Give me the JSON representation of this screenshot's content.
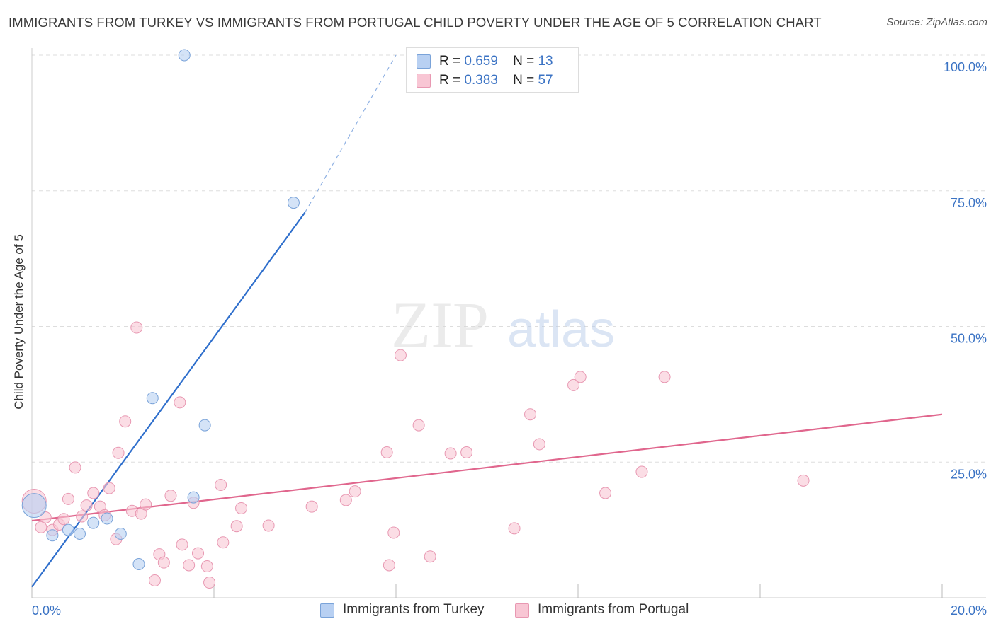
{
  "title": "IMMIGRANTS FROM TURKEY VS IMMIGRANTS FROM PORTUGAL CHILD POVERTY UNDER THE AGE OF 5 CORRELATION CHART",
  "source": "Source: ZipAtlas.com",
  "watermark": {
    "zip": "ZIP",
    "atlas": "atlas"
  },
  "legend": {
    "turkey": {
      "r_label": "R =",
      "r": "0.659",
      "n_label": "N =",
      "n": "13"
    },
    "portugal": {
      "r_label": "R =",
      "r": "0.383",
      "n_label": "N =",
      "n": "57"
    }
  },
  "bottom_legend": {
    "turkey": "Immigrants from Turkey",
    "portugal": "Immigrants from Portugal"
  },
  "colors": {
    "turkey_fill": "#b8d0f2",
    "turkey_stroke": "#7aa3d9",
    "turkey_line": "#2f6fcc",
    "portugal_fill": "#f8c6d4",
    "portugal_stroke": "#e898b2",
    "portugal_line": "#e0668d",
    "axis_text": "#3b73c4",
    "grid": "#dddddd"
  },
  "chart_data": {
    "type": "scatter",
    "title": "IMMIGRANTS FROM TURKEY VS IMMIGRANTS FROM PORTUGAL CHILD POVERTY UNDER THE AGE OF 5 CORRELATION CHART",
    "xlabel": "",
    "ylabel": "Child Poverty Under the Age of 5",
    "xlim": [
      0,
      20
    ],
    "ylim": [
      0,
      100
    ],
    "x_tick_labels": [
      {
        "value": 0,
        "label": "0.0%"
      },
      {
        "value": 20,
        "label": "20.0%"
      }
    ],
    "y_tick_labels": [
      {
        "value": 25,
        "label": "25.0%"
      },
      {
        "value": 50,
        "label": "50.0%"
      },
      {
        "value": 75,
        "label": "75.0%"
      },
      {
        "value": 100,
        "label": "100.0%"
      }
    ],
    "series": [
      {
        "name": "Immigrants from Turkey",
        "points": [
          {
            "x": 0.05,
            "y": 17.0,
            "size": "large"
          },
          {
            "x": 0.45,
            "y": 11.5
          },
          {
            "x": 0.8,
            "y": 12.5
          },
          {
            "x": 1.05,
            "y": 11.8
          },
          {
            "x": 1.35,
            "y": 13.8
          },
          {
            "x": 1.65,
            "y": 14.6
          },
          {
            "x": 1.95,
            "y": 11.8
          },
          {
            "x": 2.35,
            "y": 6.2
          },
          {
            "x": 2.65,
            "y": 36.8
          },
          {
            "x": 3.35,
            "y": 100.0
          },
          {
            "x": 3.55,
            "y": 18.5
          },
          {
            "x": 3.8,
            "y": 31.8
          },
          {
            "x": 5.75,
            "y": 72.8
          }
        ],
        "trend": {
          "x0": 0.0,
          "y0": 2.0,
          "x1": 6.0,
          "y1": 71.0,
          "dashed_to": {
            "x": 8.0,
            "y": 100.0
          }
        }
      },
      {
        "name": "Immigrants from Portugal",
        "points": [
          {
            "x": 0.05,
            "y": 17.8,
            "size": "large"
          },
          {
            "x": 0.2,
            "y": 13.0
          },
          {
            "x": 0.3,
            "y": 14.8
          },
          {
            "x": 0.45,
            "y": 12.5
          },
          {
            "x": 0.6,
            "y": 13.5
          },
          {
            "x": 0.7,
            "y": 14.5
          },
          {
            "x": 0.8,
            "y": 18.2
          },
          {
            "x": 0.95,
            "y": 24.0
          },
          {
            "x": 1.1,
            "y": 15.0
          },
          {
            "x": 1.2,
            "y": 17.0
          },
          {
            "x": 1.35,
            "y": 19.3
          },
          {
            "x": 1.5,
            "y": 16.8
          },
          {
            "x": 1.6,
            "y": 15.2
          },
          {
            "x": 1.7,
            "y": 20.2
          },
          {
            "x": 1.85,
            "y": 10.8
          },
          {
            "x": 1.9,
            "y": 26.7
          },
          {
            "x": 2.05,
            "y": 32.5
          },
          {
            "x": 2.2,
            "y": 16.0
          },
          {
            "x": 2.3,
            "y": 49.8
          },
          {
            "x": 2.4,
            "y": 15.5
          },
          {
            "x": 2.5,
            "y": 17.2
          },
          {
            "x": 2.7,
            "y": 3.2
          },
          {
            "x": 2.8,
            "y": 8.0
          },
          {
            "x": 2.9,
            "y": 6.5
          },
          {
            "x": 3.05,
            "y": 18.8
          },
          {
            "x": 3.25,
            "y": 36.0
          },
          {
            "x": 3.3,
            "y": 9.8
          },
          {
            "x": 3.45,
            "y": 6.0
          },
          {
            "x": 3.55,
            "y": 17.5
          },
          {
            "x": 3.65,
            "y": 8.2
          },
          {
            "x": 3.85,
            "y": 5.8
          },
          {
            "x": 3.9,
            "y": 2.8
          },
          {
            "x": 4.15,
            "y": 20.8
          },
          {
            "x": 4.2,
            "y": 10.2
          },
          {
            "x": 4.5,
            "y": 13.2
          },
          {
            "x": 4.6,
            "y": 16.5
          },
          {
            "x": 5.2,
            "y": 13.3
          },
          {
            "x": 6.15,
            "y": 16.8
          },
          {
            "x": 6.9,
            "y": 18.0
          },
          {
            "x": 7.1,
            "y": 19.6
          },
          {
            "x": 7.8,
            "y": 26.8
          },
          {
            "x": 7.85,
            "y": 6.0
          },
          {
            "x": 7.95,
            "y": 12.0
          },
          {
            "x": 8.1,
            "y": 44.7
          },
          {
            "x": 8.5,
            "y": 31.8
          },
          {
            "x": 8.75,
            "y": 7.6
          },
          {
            "x": 9.2,
            "y": 26.6
          },
          {
            "x": 9.55,
            "y": 26.8
          },
          {
            "x": 10.6,
            "y": 12.8
          },
          {
            "x": 10.95,
            "y": 33.8
          },
          {
            "x": 11.15,
            "y": 28.3
          },
          {
            "x": 11.9,
            "y": 39.2
          },
          {
            "x": 12.05,
            "y": 40.7
          },
          {
            "x": 12.6,
            "y": 19.3
          },
          {
            "x": 13.4,
            "y": 23.2
          },
          {
            "x": 13.9,
            "y": 40.7
          },
          {
            "x": 16.95,
            "y": 21.6
          }
        ],
        "trend": {
          "x0": 0.0,
          "y0": 14.2,
          "x1": 20.0,
          "y1": 33.8
        }
      }
    ]
  }
}
